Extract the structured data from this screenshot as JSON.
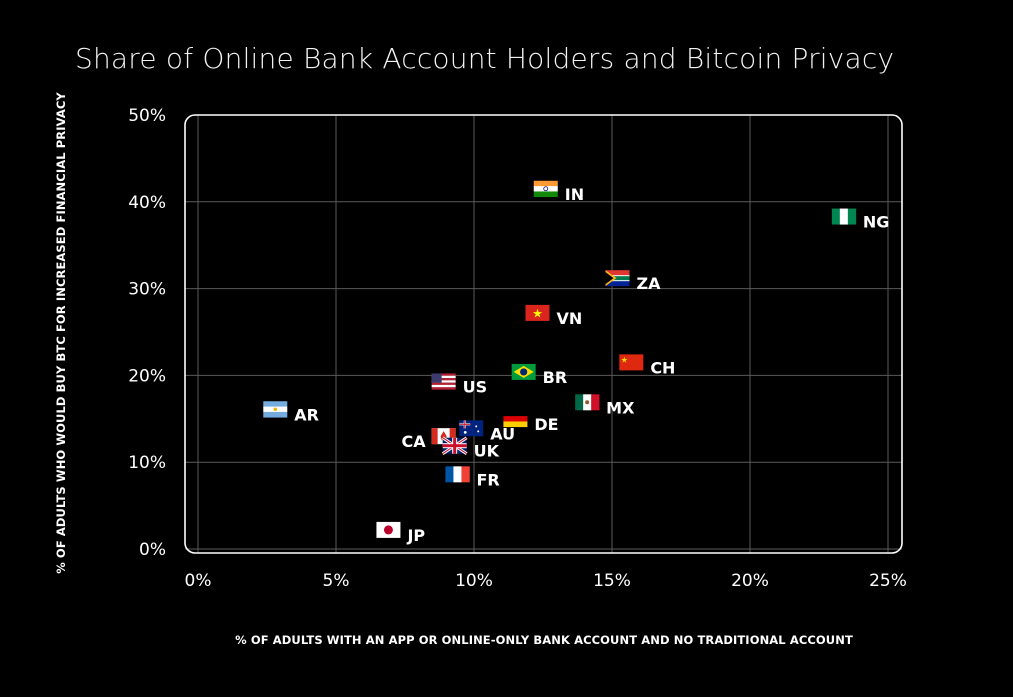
{
  "chart_data": {
    "type": "scatter",
    "title": "Share of Online Bank Account Holders and Bitcoin Privacy",
    "xlabel": "% OF ADULTS WITH AN APP OR ONLINE-ONLY BANK ACCOUNT AND NO TRADITIONAL ACCOUNT",
    "ylabel": "% OF ADULTS WHO WOULD BUY BTC FOR INCREASED FINANCIAL PRIVACY",
    "xlim": [
      0,
      25
    ],
    "ylim": [
      0,
      50
    ],
    "x_ticks": [
      0,
      5,
      10,
      15,
      20,
      25
    ],
    "x_tick_labels": [
      "0%",
      "5%",
      "10%",
      "15%",
      "20%",
      "25%"
    ],
    "y_ticks": [
      0,
      10,
      20,
      30,
      40,
      50
    ],
    "y_tick_labels": [
      "0%",
      "10%",
      "20%",
      "30%",
      "40%",
      "50%"
    ],
    "grid": true,
    "points": [
      {
        "label": "IN",
        "x": 12.6,
        "y": 41.5,
        "flag": "india-flag-icon",
        "label_side": "right"
      },
      {
        "label": "NG",
        "x": 23.4,
        "y": 38.3,
        "flag": "nigeria-flag-icon",
        "label_side": "right"
      },
      {
        "label": "ZA",
        "x": 15.2,
        "y": 31.2,
        "flag": "south-africa-flag-icon",
        "label_side": "right"
      },
      {
        "label": "VN",
        "x": 12.3,
        "y": 27.2,
        "flag": "vietnam-flag-icon",
        "label_side": "right"
      },
      {
        "label": "CH",
        "x": 15.7,
        "y": 21.5,
        "flag": "china-flag-icon",
        "label_side": "right"
      },
      {
        "label": "BR",
        "x": 11.8,
        "y": 20.4,
        "flag": "brazil-flag-icon",
        "label_side": "right"
      },
      {
        "label": "US",
        "x": 8.9,
        "y": 19.3,
        "flag": "usa-flag-icon",
        "label_side": "right"
      },
      {
        "label": "MX",
        "x": 14.1,
        "y": 16.9,
        "flag": "mexico-flag-icon",
        "label_side": "right"
      },
      {
        "label": "AR",
        "x": 2.8,
        "y": 16.1,
        "flag": "argentina-flag-icon",
        "label_side": "right"
      },
      {
        "label": "DE",
        "x": 11.5,
        "y": 15.0,
        "flag": "germany-flag-icon",
        "label_side": "right"
      },
      {
        "label": "AU",
        "x": 9.9,
        "y": 13.9,
        "flag": "australia-flag-icon",
        "label_side": "right"
      },
      {
        "label": "CA",
        "x": 8.9,
        "y": 13.0,
        "flag": "canada-flag-icon",
        "label_side": "left"
      },
      {
        "label": "UK",
        "x": 9.3,
        "y": 11.9,
        "flag": "uk-flag-icon",
        "label_side": "right"
      },
      {
        "label": "FR",
        "x": 9.4,
        "y": 8.6,
        "flag": "france-flag-icon",
        "label_side": "right"
      },
      {
        "label": "JP",
        "x": 6.9,
        "y": 2.2,
        "flag": "japan-flag-icon",
        "label_side": "right"
      }
    ],
    "colors": {
      "background": "#000000",
      "text": "#ffffff",
      "grid": "#5a5a5a",
      "frame": "#ffffff"
    }
  }
}
